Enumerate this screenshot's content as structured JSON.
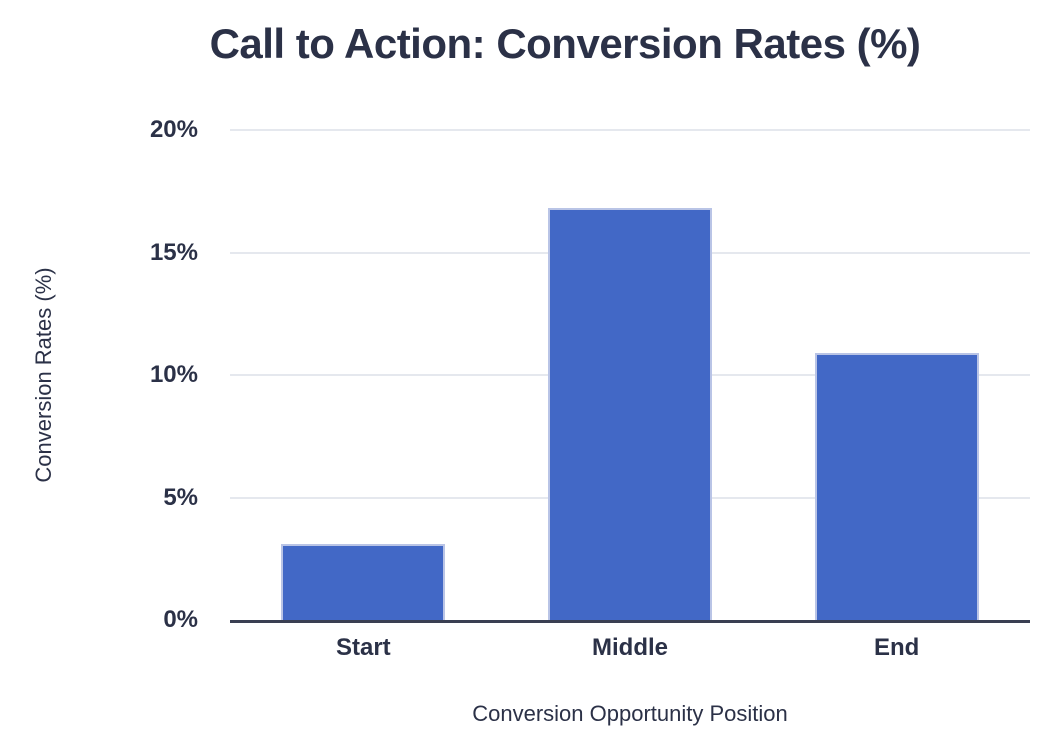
{
  "chart_data": {
    "type": "bar",
    "title": "Call to Action: Conversion Rates (%)",
    "xlabel": "Conversion Opportunity Position",
    "ylabel": "Conversion Rates (%)",
    "categories": [
      "Start",
      "Middle",
      "End"
    ],
    "values": [
      3.1,
      16.8,
      10.9
    ],
    "ylim": [
      0,
      20
    ],
    "yticks": [
      0,
      5,
      10,
      15,
      20
    ],
    "ytick_labels": [
      "0%",
      "5%",
      "10%",
      "15%",
      "20%"
    ],
    "legend": "none",
    "grid": true,
    "colors": {
      "bar_fill": "#4268c6",
      "bar_edge": "#b9c4e6",
      "text": "#2b3147",
      "gridline": "#e5e8ee",
      "axis_line": "#3a3f52",
      "background": "#ffffff"
    }
  }
}
